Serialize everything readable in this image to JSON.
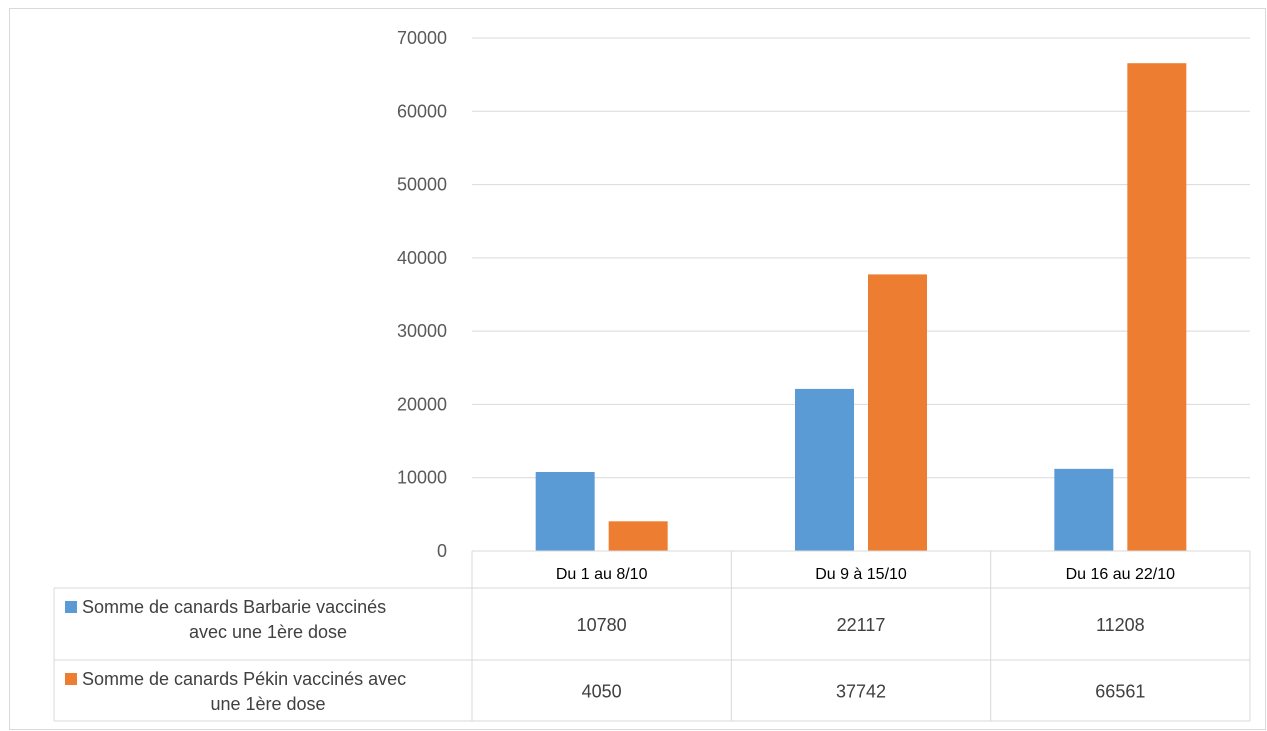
{
  "chart_data": {
    "type": "bar",
    "categories": [
      "Du 1 au 8/10",
      "Du 9 à 15/10",
      "Du 16 au 22/10"
    ],
    "series": [
      {
        "name": "Somme de canards Barbarie vaccinés avec une 1ère dose",
        "name_lines": [
          "Somme de canards Barbarie vaccinés",
          "avec une 1ère dose"
        ],
        "color": "#5b9bd5",
        "values": [
          10780,
          22117,
          11208
        ]
      },
      {
        "name": "Somme de canards Pékin vaccinés avec une 1ère dose",
        "name_lines": [
          "Somme de canards Pékin vaccinés avec",
          "une 1ère dose"
        ],
        "color": "#ed7d31",
        "values": [
          4050,
          37742,
          66561
        ]
      }
    ],
    "yticks": [
      0,
      10000,
      20000,
      30000,
      40000,
      50000,
      60000,
      70000
    ],
    "ylim": [
      0,
      70000
    ],
    "grid": true,
    "legend": "data-table"
  }
}
